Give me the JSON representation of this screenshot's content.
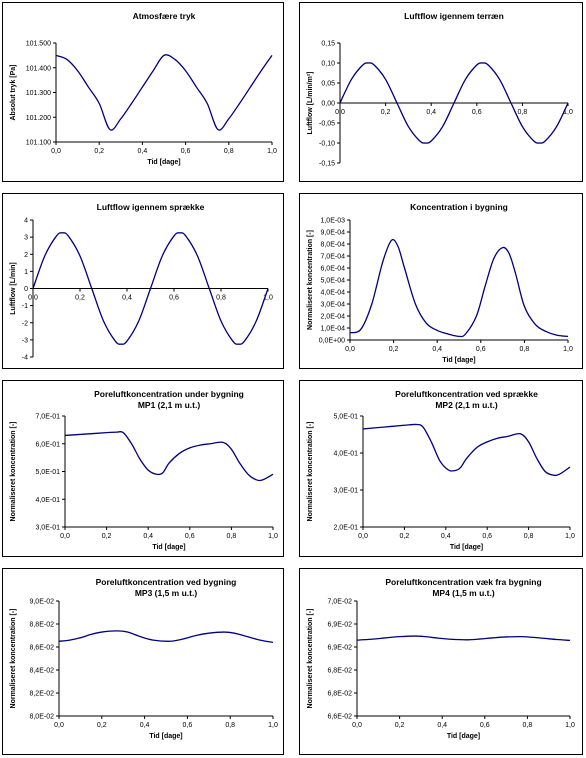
{
  "chart_data": [
    {
      "type": "line",
      "title": "Atmosfære tryk",
      "subtitle": "",
      "xlabel": "Tid [dage]",
      "ylabel": "Absolut tryk [Pa]",
      "xlim": [
        0,
        1
      ],
      "ylim": [
        101100,
        101500
      ],
      "xticks": [
        "0,0",
        "0,2",
        "0,4",
        "0,6",
        "0,8",
        "1,0"
      ],
      "yticks": [
        "101.100",
        "101.200",
        "101.300",
        "101.400",
        "101.500"
      ],
      "x_axis_at_zero": false,
      "grid": false,
      "color": "#000080",
      "series": [
        {
          "x": [
            0.0,
            0.05,
            0.1,
            0.15,
            0.2,
            0.25,
            0.3,
            0.35,
            0.4,
            0.45,
            0.5,
            0.55,
            0.6,
            0.65,
            0.7,
            0.75,
            0.8,
            0.85,
            0.9,
            0.95,
            1.0
          ],
          "y": [
            101450,
            101434,
            101388,
            101322,
            101256,
            101150,
            101194,
            101256,
            101322,
            101388,
            101450,
            101434,
            101388,
            101322,
            101256,
            101150,
            101194,
            101256,
            101322,
            101388,
            101450
          ]
        }
      ]
    },
    {
      "type": "line",
      "title": "Luftflow igennem terræn",
      "subtitle": "",
      "xlabel": "",
      "ylabel": "Luftflow [L/min/m²]",
      "xlim": [
        0,
        1
      ],
      "ylim": [
        -0.15,
        0.15
      ],
      "xticks": [
        "0,0",
        "0,2",
        "0,4",
        "0,6",
        "0,8",
        "1,0"
      ],
      "yticks": [
        "-0,15",
        "-0,10",
        "-0,05",
        "0,00",
        "0,05",
        "0,10",
        "0,15"
      ],
      "x_axis_at_zero": true,
      "grid": false,
      "color": "#000080",
      "series": [
        {
          "x": [
            0.0,
            0.05,
            0.1,
            0.125,
            0.15,
            0.2,
            0.25,
            0.3,
            0.35,
            0.375,
            0.4,
            0.45,
            0.5,
            0.55,
            0.6,
            0.625,
            0.65,
            0.7,
            0.75,
            0.8,
            0.85,
            0.875,
            0.9,
            0.95,
            1.0
          ],
          "y": [
            0.0,
            0.059,
            0.095,
            0.1,
            0.095,
            0.059,
            0.0,
            -0.059,
            -0.095,
            -0.1,
            -0.095,
            -0.059,
            0.0,
            0.059,
            0.095,
            0.1,
            0.095,
            0.059,
            0.0,
            -0.059,
            -0.095,
            -0.1,
            -0.095,
            -0.059,
            0.0
          ]
        }
      ]
    },
    {
      "type": "line",
      "title": "Luftflow igennem sprække",
      "subtitle": "",
      "xlabel": "",
      "ylabel": "Luftflow [L/min]",
      "xlim": [
        0,
        1
      ],
      "ylim": [
        -4,
        4
      ],
      "xticks": [
        "0,0",
        "0,2",
        "0,4",
        "0,6",
        "0,8",
        "1,0"
      ],
      "yticks": [
        "-4",
        "-3",
        "-2",
        "-1",
        "0",
        "1",
        "2",
        "3",
        "4"
      ],
      "x_axis_at_zero": true,
      "grid": false,
      "color": "#000080",
      "series": [
        {
          "x": [
            0.0,
            0.05,
            0.1,
            0.125,
            0.15,
            0.2,
            0.25,
            0.3,
            0.35,
            0.375,
            0.4,
            0.45,
            0.5,
            0.55,
            0.6,
            0.625,
            0.65,
            0.7,
            0.75,
            0.8,
            0.85,
            0.875,
            0.9,
            0.95,
            1.0
          ],
          "y": [
            0.0,
            1.9,
            3.07,
            3.25,
            3.07,
            1.9,
            0.0,
            -1.9,
            -3.07,
            -3.25,
            -3.07,
            -1.9,
            0.0,
            1.9,
            3.07,
            3.25,
            3.07,
            1.9,
            0.0,
            -1.9,
            -3.07,
            -3.25,
            -3.07,
            -1.9,
            0.0
          ]
        }
      ]
    },
    {
      "type": "line",
      "title": "Koncentration i bygning",
      "subtitle": "",
      "xlabel": "Tid [dage]",
      "ylabel": "Normaliseret koncentration [-]",
      "xlim": [
        0,
        1
      ],
      "ylim": [
        0,
        0.001
      ],
      "xticks": [
        "0,0",
        "0,2",
        "0,4",
        "0,6",
        "0,8",
        "1,0"
      ],
      "yticks": [
        "0,0E+00",
        "1,0E-04",
        "2,0E-04",
        "3,0E-04",
        "4,0E-04",
        "5,0E-04",
        "6,0E-04",
        "7,0E-04",
        "8,0E-04",
        "9,0E-04",
        "1,0E-03"
      ],
      "x_axis_at_zero": false,
      "grid": false,
      "color": "#000080",
      "series": [
        {
          "x": [
            0.0,
            0.05,
            0.1,
            0.15,
            0.19,
            0.22,
            0.25,
            0.3,
            0.35,
            0.4,
            0.45,
            0.5,
            0.53,
            0.58,
            0.62,
            0.66,
            0.7,
            0.73,
            0.76,
            0.8,
            0.85,
            0.9,
            0.95,
            1.0
          ],
          "y": [
            6e-05,
            9e-05,
            0.0003,
            0.00065,
            0.00083,
            0.00078,
            0.0006,
            0.0003,
            0.00014,
            8e-05,
            5e-05,
            3e-05,
            5e-05,
            0.0002,
            0.00045,
            0.00068,
            0.00077,
            0.00072,
            0.00055,
            0.00028,
            0.00013,
            7e-05,
            4e-05,
            3e-05
          ]
        }
      ]
    },
    {
      "type": "line",
      "title": "Poreluftkoncentration under bygning",
      "subtitle": "MP1 (2,1 m u.t.)",
      "xlabel": "Tid [dage]",
      "ylabel": "Normaliseret koncentration [-]",
      "xlim": [
        0,
        1
      ],
      "ylim": [
        0.3,
        0.7
      ],
      "xticks": [
        "0,0",
        "0,2",
        "0,4",
        "0,6",
        "0,8",
        "1,0"
      ],
      "yticks": [
        "3,0E-01",
        "4,0E-01",
        "5,0E-01",
        "6,0E-01",
        "7,0E-01"
      ],
      "x_axis_at_zero": false,
      "grid": false,
      "color": "#000080",
      "series": [
        {
          "x": [
            0.0,
            0.1,
            0.2,
            0.25,
            0.28,
            0.32,
            0.36,
            0.4,
            0.44,
            0.47,
            0.5,
            0.55,
            0.6,
            0.65,
            0.7,
            0.76,
            0.8,
            0.84,
            0.88,
            0.92,
            0.95,
            1.0
          ],
          "y": [
            0.63,
            0.635,
            0.64,
            0.642,
            0.64,
            0.6,
            0.545,
            0.505,
            0.49,
            0.495,
            0.53,
            0.565,
            0.585,
            0.595,
            0.6,
            0.605,
            0.58,
            0.53,
            0.49,
            0.47,
            0.47,
            0.49
          ]
        }
      ]
    },
    {
      "type": "line",
      "title": "Poreluftkoncentration ved sprække",
      "subtitle": "MP2 (2,1 m u.t.)",
      "xlabel": "Tid [dage]",
      "ylabel": "Normaliseret koncentration [-]",
      "xlim": [
        0,
        1
      ],
      "ylim": [
        0.2,
        0.5
      ],
      "xticks": [
        "0,0",
        "0,2",
        "0,4",
        "0,6",
        "0,8",
        "1,0"
      ],
      "yticks": [
        "2,0E-01",
        "3,0E-01",
        "4,0E-01",
        "5,0E-01"
      ],
      "x_axis_at_zero": false,
      "grid": false,
      "color": "#000080",
      "series": [
        {
          "x": [
            0.0,
            0.1,
            0.2,
            0.26,
            0.29,
            0.33,
            0.37,
            0.41,
            0.44,
            0.47,
            0.5,
            0.55,
            0.6,
            0.65,
            0.7,
            0.76,
            0.8,
            0.84,
            0.88,
            0.92,
            0.95,
            1.0
          ],
          "y": [
            0.465,
            0.47,
            0.475,
            0.477,
            0.47,
            0.43,
            0.38,
            0.355,
            0.352,
            0.36,
            0.385,
            0.415,
            0.43,
            0.44,
            0.445,
            0.452,
            0.43,
            0.385,
            0.35,
            0.34,
            0.343,
            0.362
          ]
        }
      ]
    },
    {
      "type": "line",
      "title": "Poreluftkoncentration ved bygning",
      "subtitle": "MP3 (1,5 m u.t.)",
      "xlabel": "Tid [dage]",
      "ylabel": "Normaliseret koncentration [-]",
      "xlim": [
        0,
        1
      ],
      "ylim": [
        0.08,
        0.09
      ],
      "xticks": [
        "0,0",
        "0,2",
        "0,4",
        "0,6",
        "0,8",
        "1,0"
      ],
      "yticks": [
        "8,0E-02",
        "8,2E-02",
        "8,4E-02",
        "8,6E-02",
        "8,8E-02",
        "9,0E-02"
      ],
      "x_axis_at_zero": false,
      "grid": false,
      "color": "#000080",
      "series": [
        {
          "x": [
            0.0,
            0.05,
            0.1,
            0.15,
            0.2,
            0.27,
            0.32,
            0.38,
            0.44,
            0.52,
            0.58,
            0.64,
            0.7,
            0.77,
            0.82,
            0.88,
            0.94,
            1.0
          ],
          "y": [
            0.0865,
            0.0866,
            0.0868,
            0.0871,
            0.0873,
            0.0874,
            0.0873,
            0.0869,
            0.0866,
            0.0865,
            0.0867,
            0.087,
            0.0872,
            0.0873,
            0.0872,
            0.0869,
            0.0866,
            0.0864
          ]
        }
      ]
    },
    {
      "type": "line",
      "title": "Poreluftkoncentration væk fra bygning",
      "subtitle": "MP4 (1,5 m u.t.)",
      "xlabel": "Tid [dage]",
      "ylabel": "Normaliseret koncentration [-]",
      "xlim": [
        0,
        1
      ],
      "ylim": [
        0.066,
        0.07
      ],
      "xticks": [
        "0,0",
        "0,2",
        "0,4",
        "0,6",
        "0,8",
        "1,0"
      ],
      "yticks": [
        "6,6E-02",
        "6,8E-02",
        "6,8E-02",
        "6,9E-02",
        "6,9E-02",
        "7,0E-02"
      ],
      "x_axis_at_zero": false,
      "grid": false,
      "color": "#000080",
      "series": [
        {
          "x": [
            0.0,
            0.05,
            0.1,
            0.15,
            0.2,
            0.27,
            0.32,
            0.38,
            0.44,
            0.52,
            0.58,
            0.64,
            0.7,
            0.77,
            0.82,
            0.88,
            0.94,
            1.0
          ],
          "y": [
            0.06864,
            0.06866,
            0.06869,
            0.06873,
            0.06876,
            0.06878,
            0.06876,
            0.06871,
            0.06867,
            0.06865,
            0.06868,
            0.06872,
            0.06875,
            0.06876,
            0.06874,
            0.0687,
            0.06866,
            0.06863
          ]
        }
      ]
    }
  ]
}
